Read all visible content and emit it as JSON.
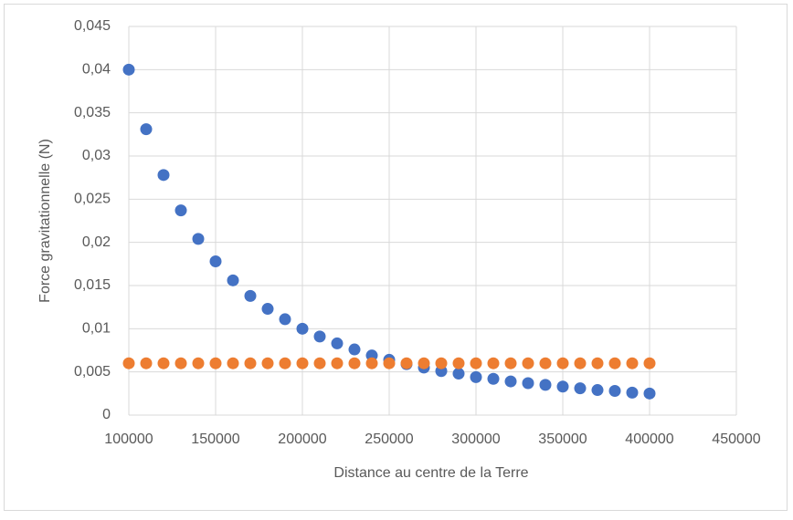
{
  "chart_data": {
    "type": "scatter",
    "xlabel": "Distance au centre de la Terre",
    "ylabel": "Force gravitationnelle (N)",
    "x": [
      100000,
      110000,
      120000,
      130000,
      140000,
      150000,
      160000,
      170000,
      180000,
      190000,
      200000,
      210000,
      220000,
      230000,
      240000,
      250000,
      260000,
      270000,
      280000,
      290000,
      300000,
      310000,
      320000,
      330000,
      340000,
      350000,
      360000,
      370000,
      380000,
      390000,
      400000
    ],
    "series": [
      {
        "color": "#4472c4",
        "values": [
          0.04,
          0.0331,
          0.0278,
          0.0237,
          0.0204,
          0.0178,
          0.0156,
          0.0138,
          0.0123,
          0.0111,
          0.01,
          0.0091,
          0.0083,
          0.0076,
          0.0069,
          0.0064,
          0.0059,
          0.0055,
          0.0051,
          0.0048,
          0.0044,
          0.0042,
          0.0039,
          0.0037,
          0.0035,
          0.0033,
          0.0031,
          0.0029,
          0.0028,
          0.0026,
          0.0025
        ]
      },
      {
        "color": "#ed7d31",
        "values": [
          0.006,
          0.006,
          0.006,
          0.006,
          0.006,
          0.006,
          0.006,
          0.006,
          0.006,
          0.006,
          0.006,
          0.006,
          0.006,
          0.006,
          0.006,
          0.006,
          0.006,
          0.006,
          0.006,
          0.006,
          0.006,
          0.006,
          0.006,
          0.006,
          0.006,
          0.006,
          0.006,
          0.006,
          0.006,
          0.006,
          0.006
        ]
      }
    ],
    "xlim": [
      100000,
      450000
    ],
    "xticks": [
      100000,
      150000,
      200000,
      250000,
      300000,
      350000,
      400000,
      450000
    ],
    "ylim": [
      0,
      0.045
    ],
    "yticks": [
      0,
      {
        "value": 0.005,
        "label": "0,005"
      },
      {
        "value": 0.01,
        "label": "0,01"
      },
      {
        "value": 0.015,
        "label": "0,015"
      },
      {
        "value": 0.02,
        "label": "0,02"
      },
      {
        "value": 0.025,
        "label": "0,025"
      },
      {
        "value": 0.03,
        "label": "0,03"
      },
      {
        "value": 0.035,
        "label": "0,035"
      },
      {
        "value": 0.04,
        "label": "0,04"
      },
      {
        "value": 0.045,
        "label": "0,045"
      }
    ],
    "grid": true
  }
}
